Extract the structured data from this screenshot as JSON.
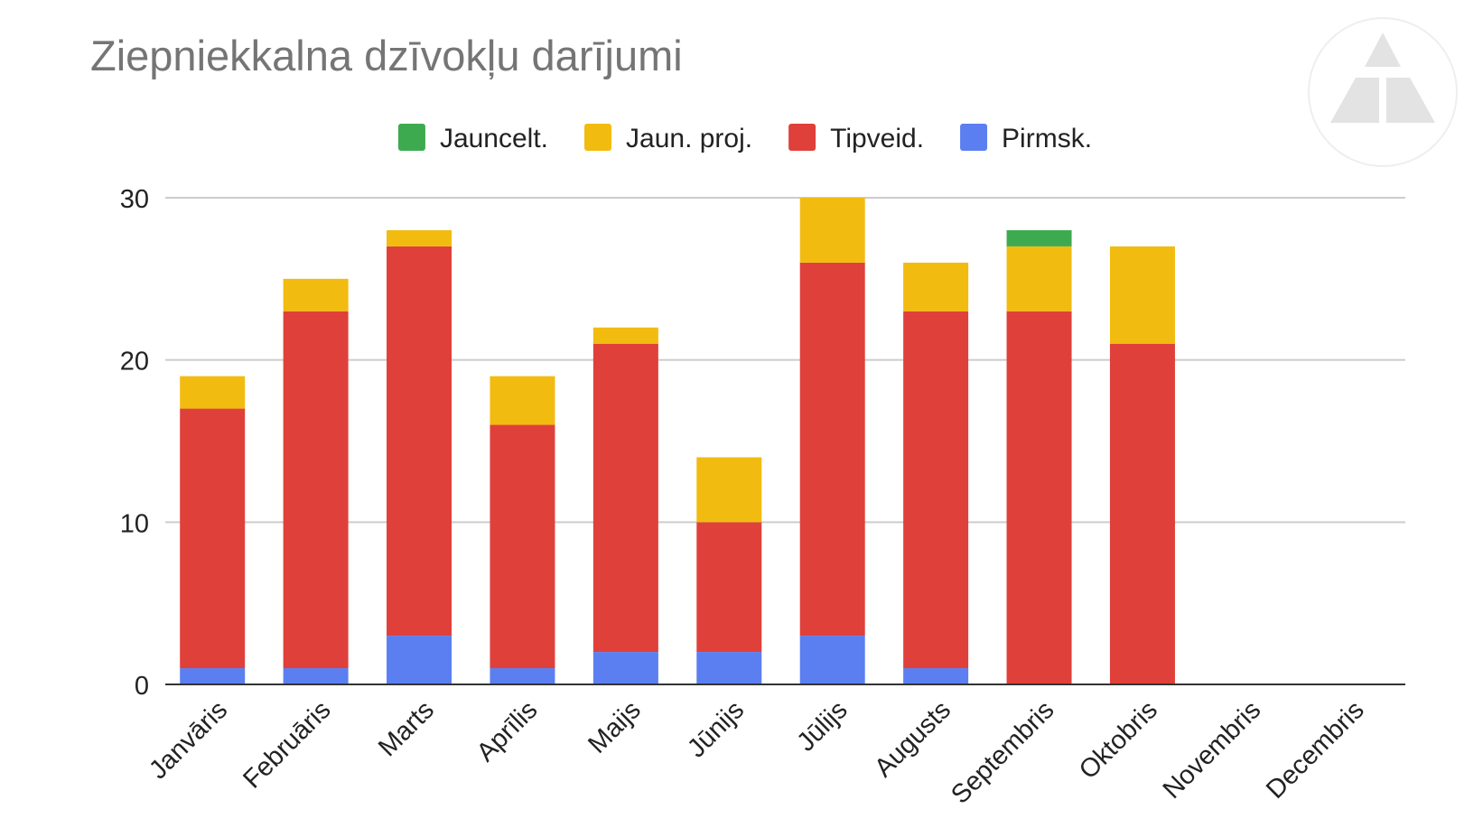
{
  "chart_data": {
    "type": "bar",
    "stacked": true,
    "title": "Ziepniekkalna dzīvokļu darījumi",
    "xlabel": "",
    "ylabel": "",
    "ylim": [
      0,
      30
    ],
    "yticks": [
      0,
      10,
      20,
      30
    ],
    "grid": true,
    "legend_position": "top",
    "categories": [
      "Janvāris",
      "Februāris",
      "Marts",
      "Aprīlis",
      "Maijs",
      "Jūnijs",
      "Jūlijs",
      "Augusts",
      "Septembris",
      "Oktobris",
      "Novembris",
      "Decembris"
    ],
    "series": [
      {
        "name": "Pirmsk.",
        "color": "#5b7ff1",
        "values": [
          1,
          1,
          3,
          1,
          2,
          2,
          3,
          1,
          0,
          0,
          0,
          0
        ]
      },
      {
        "name": "Tipveid.",
        "color": "#e0403a",
        "values": [
          16,
          22,
          24,
          15,
          19,
          8,
          23,
          22,
          23,
          21,
          0,
          0
        ]
      },
      {
        "name": "Jaun. proj.",
        "color": "#f2bb10",
        "values": [
          2,
          2,
          1,
          3,
          1,
          4,
          4,
          3,
          4,
          6,
          0,
          0
        ]
      },
      {
        "name": "Jauncelt.",
        "color": "#3eaa50",
        "values": [
          0,
          0,
          0,
          0,
          0,
          0,
          0,
          0,
          1,
          0,
          0,
          0
        ]
      }
    ],
    "legend_order": [
      "Jauncelt.",
      "Jaun. proj.",
      "Tipveid.",
      "Pirmsk."
    ]
  },
  "colors": {
    "title": "#757575",
    "text": "#222222",
    "grid": "#cccccc",
    "axis": "#333333",
    "logo": "#e3e3e3"
  },
  "logo": {
    "icon": "triangle-logo-icon"
  }
}
